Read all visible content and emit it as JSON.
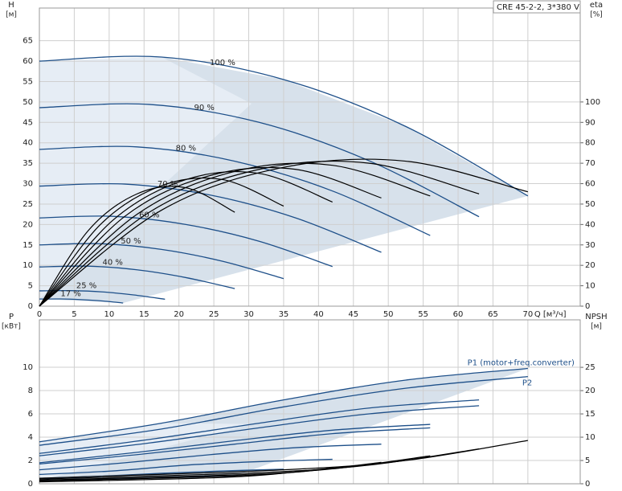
{
  "chart_data": [
    {
      "type": "pump-curve",
      "model": "CRE 45-2-2, 3*380 V",
      "ylabel": "H",
      "yunit": "[м]",
      "y2label": "eta",
      "y2unit": "[%]",
      "xlabel": "Q [м³/ч]",
      "xlim": [
        0,
        77.5
      ],
      "xticks": [
        0,
        5,
        10,
        15,
        20,
        25,
        30,
        35,
        40,
        45,
        50,
        55,
        60,
        65,
        70
      ],
      "ylim": [
        0,
        73
      ],
      "yticks": [
        0,
        5,
        10,
        15,
        20,
        25,
        30,
        35,
        40,
        45,
        50,
        55,
        60,
        65
      ],
      "y2lim": [
        0,
        146
      ],
      "y2ticks": [
        0,
        10,
        20,
        30,
        40,
        50,
        60,
        70,
        80,
        90,
        100
      ],
      "grid": true,
      "series": [
        {
          "label": "100 %",
          "color": "#1d4f89",
          "x": [
            0,
            17.5,
            35,
            52.5,
            70
          ],
          "values": [
            60,
            61,
            55.5,
            44,
            27
          ]
        },
        {
          "label": "90 %",
          "color": "#1d4f89",
          "x": [
            0,
            15.75,
            31.5,
            47.25,
            63
          ],
          "values": [
            48.6,
            49.4,
            45,
            35.6,
            21.9
          ]
        },
        {
          "label": "80 %",
          "color": "#1d4f89",
          "x": [
            0,
            14,
            28,
            42,
            56
          ],
          "values": [
            38.4,
            39,
            35.5,
            28.2,
            17.3
          ]
        },
        {
          "label": "70 %",
          "color": "#1d4f89",
          "x": [
            0,
            12.25,
            24.5,
            36.75,
            49
          ],
          "values": [
            29.4,
            29.9,
            27.2,
            21.6,
            13.2
          ]
        },
        {
          "label": "60 %",
          "color": "#1d4f89",
          "x": [
            0,
            10.5,
            21,
            31.5,
            42
          ],
          "values": [
            21.6,
            22,
            20,
            15.9,
            9.7
          ]
        },
        {
          "label": "50 %",
          "color": "#1d4f89",
          "x": [
            0,
            8.75,
            17.5,
            26.25,
            35
          ],
          "values": [
            15,
            15.3,
            13.9,
            11,
            6.75
          ]
        },
        {
          "label": "40 %",
          "color": "#1d4f89",
          "x": [
            0,
            7,
            14,
            21,
            28
          ],
          "values": [
            9.6,
            9.8,
            8.9,
            7,
            4.3
          ]
        },
        {
          "label": "25 %",
          "color": "#1d4f89",
          "x": [
            0,
            4.5,
            9,
            13.5,
            18
          ],
          "values": [
            3.75,
            3.8,
            3.5,
            2.75,
            1.7
          ]
        },
        {
          "label": "17 %",
          "color": "#1d4f89",
          "x": [
            0,
            3,
            6,
            9,
            12
          ],
          "values": [
            1.74,
            1.77,
            1.6,
            1.28,
            0.78
          ]
        },
        {
          "color": "#000000",
          "axis": "y2",
          "x": [
            0,
            17.5,
            35,
            52.5,
            70
          ],
          "values": [
            0,
            47,
            68,
            71,
            56
          ]
        },
        {
          "color": "#000000",
          "axis": "y2",
          "x": [
            0,
            15.75,
            31.5,
            47.25,
            63
          ],
          "values": [
            0,
            46,
            67,
            70,
            55
          ]
        },
        {
          "color": "#000000",
          "axis": "y2",
          "x": [
            0,
            14,
            28,
            42,
            56
          ],
          "values": [
            0,
            45,
            66,
            69,
            54
          ]
        },
        {
          "color": "#000000",
          "axis": "y2",
          "x": [
            0,
            12.25,
            24.5,
            36.75,
            49
          ],
          "values": [
            0,
            44,
            64,
            67,
            53
          ]
        },
        {
          "color": "#000000",
          "axis": "y2",
          "x": [
            0,
            10.5,
            21,
            31.5,
            42
          ],
          "values": [
            0,
            42,
            62,
            65,
            51
          ]
        },
        {
          "color": "#000000",
          "axis": "y2",
          "x": [
            0,
            8.75,
            17.5,
            26.25,
            35
          ],
          "values": [
            0,
            40,
            59,
            62,
            49
          ]
        },
        {
          "color": "#000000",
          "axis": "y2",
          "x": [
            0,
            7,
            14,
            21,
            28
          ],
          "values": [
            0,
            37,
            55,
            58,
            46
          ]
        }
      ]
    },
    {
      "type": "pump-curve",
      "ylabel": "P",
      "yunit": "[кВт]",
      "y2label": "NPSH",
      "y2unit": "[м]",
      "xlim": [
        0,
        77.5
      ],
      "xticks": [
        0,
        5,
        10,
        15,
        20,
        25,
        30,
        35,
        40,
        45,
        50,
        55,
        60,
        65,
        70
      ],
      "ylim": [
        0,
        14.07
      ],
      "yticks": [
        0,
        2,
        4,
        6,
        8,
        10
      ],
      "y2lim": [
        0,
        35.2
      ],
      "y2ticks": [
        0,
        5,
        10,
        15,
        20,
        25
      ],
      "grid": true,
      "series": [
        {
          "name": "P1 (motor+freq.converter)",
          "color": "#1d4f89",
          "x": [
            0,
            17.5,
            35,
            52.5,
            70
          ],
          "values": [
            3.6,
            5.2,
            7.2,
            8.9,
            9.9
          ]
        },
        {
          "name": "P2",
          "color": "#1d4f89",
          "x": [
            0,
            17.5,
            35,
            52.5,
            70
          ],
          "values": [
            3.3,
            4.7,
            6.6,
            8.2,
            9.2
          ]
        },
        {
          "color": "#1d4f89",
          "x": [
            0,
            15.75,
            31.5,
            47.25,
            63
          ],
          "values": [
            2.6,
            3.8,
            5.2,
            6.5,
            7.2
          ]
        },
        {
          "color": "#1d4f89",
          "x": [
            0,
            15.75,
            31.5,
            47.25,
            63
          ],
          "values": [
            2.4,
            3.5,
            4.8,
            6,
            6.7
          ]
        },
        {
          "color": "#1d4f89",
          "x": [
            0,
            14,
            28,
            42,
            56
          ],
          "values": [
            1.8,
            2.7,
            3.7,
            4.6,
            5.1
          ]
        },
        {
          "color": "#1d4f89",
          "x": [
            0,
            14,
            28,
            42,
            56
          ],
          "values": [
            1.7,
            2.5,
            3.4,
            4.3,
            4.8
          ]
        },
        {
          "color": "#1d4f89",
          "x": [
            0,
            12.25,
            24.5,
            36.75,
            49
          ],
          "values": [
            1.2,
            1.8,
            2.5,
            3.1,
            3.4
          ]
        },
        {
          "color": "#1d4f89",
          "x": [
            0,
            10.5,
            21,
            31.5,
            42
          ],
          "values": [
            0.8,
            1.1,
            1.6,
            1.9,
            2.1
          ]
        },
        {
          "color": "#1d4f89",
          "x": [
            0,
            8.75,
            17.5,
            26.25,
            35
          ],
          "values": [
            0.45,
            0.65,
            0.9,
            1.1,
            1.25
          ]
        },
        {
          "color": "#1d4f89",
          "x": [
            0,
            7,
            14,
            21,
            28
          ],
          "values": [
            0.25,
            0.35,
            0.5,
            0.6,
            0.65
          ]
        },
        {
          "color": "#000000",
          "axis": "y2",
          "x": [
            0,
            35,
            52.5,
            70
          ],
          "values": [
            1.2,
            3,
            5,
            9.3
          ]
        },
        {
          "color": "#000000",
          "axis": "y2",
          "x": [
            0,
            31.5,
            47.25,
            63
          ],
          "values": [
            1,
            2.4,
            4,
            7.5
          ]
        },
        {
          "color": "#000000",
          "axis": "y2",
          "x": [
            0,
            28,
            42,
            56
          ],
          "values": [
            0.8,
            1.9,
            3.2,
            6
          ]
        },
        {
          "color": "#000000",
          "axis": "y2",
          "x": [
            0,
            24.5,
            36.75,
            49
          ],
          "values": [
            0.6,
            1.5,
            2.5,
            4.6
          ]
        },
        {
          "color": "#000000",
          "axis": "y2",
          "x": [
            0,
            21,
            31.5,
            42
          ],
          "values": [
            0.4,
            1.1,
            1.8,
            3.4
          ]
        }
      ]
    }
  ]
}
